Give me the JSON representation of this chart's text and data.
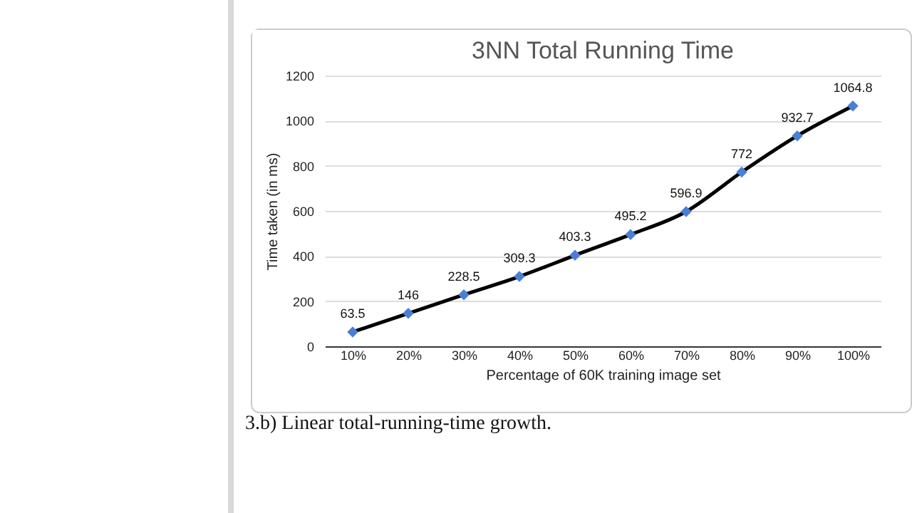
{
  "chart_data": {
    "type": "line",
    "title": "3NN Total Running Time",
    "xlabel": "Percentage of 60K training image set",
    "ylabel": "Time taken (in ms)",
    "categories": [
      "10%",
      "20%",
      "30%",
      "40%",
      "50%",
      "60%",
      "70%",
      "80%",
      "90%",
      "100%"
    ],
    "series": [
      {
        "color": "#000000",
        "values": [
          63.5,
          146,
          228.5,
          309.3,
          403.3,
          495.2,
          596.9,
          772,
          932.7,
          1064.8
        ]
      }
    ],
    "colors": [
      "#4a7fd6",
      "#4a7fd6",
      "#4a7fd6",
      "#4a7fd6",
      "#4a7fd6",
      "#4a7fd6",
      "#4a7fd6",
      "#4a7fd6",
      "#4a7fd6",
      "#4a7fd6"
    ],
    "ylim": [
      0,
      1200
    ],
    "yticks": [
      0,
      200,
      400,
      600,
      800,
      1000,
      1200
    ],
    "grid": "y",
    "marker": "diamond",
    "data_labels": true,
    "annotations": [
      "3.b) Linear total-running-time growth."
    ]
  }
}
